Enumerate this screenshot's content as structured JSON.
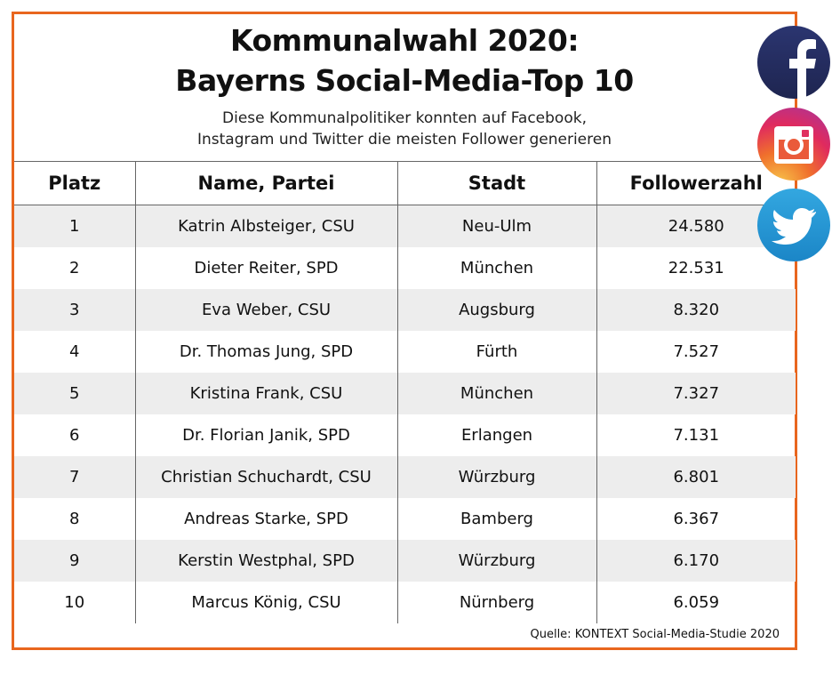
{
  "header": {
    "title_line1": "Kommunalwahl 2020:",
    "title_line2": "Bayerns Social-Media-Top 10",
    "subtitle_line1": "Diese Kommunalpolitiker konnten auf Facebook,",
    "subtitle_line2": "Instagram und Twitter die meisten Follower generieren"
  },
  "table": {
    "columns": [
      "Platz",
      "Name, Partei",
      "Stadt",
      "Followerzahl"
    ],
    "rows": [
      [
        "1",
        "Katrin Albsteiger, CSU",
        "Neu-Ulm",
        "24.580"
      ],
      [
        "2",
        "Dieter Reiter, SPD",
        "München",
        "22.531"
      ],
      [
        "3",
        "Eva Weber, CSU",
        "Augsburg",
        "8.320"
      ],
      [
        "4",
        "Dr. Thomas Jung, SPD",
        "Fürth",
        "7.527"
      ],
      [
        "5",
        "Kristina Frank, CSU",
        "München",
        "7.327"
      ],
      [
        "6",
        "Dr. Florian Janik, SPD",
        "Erlangen",
        "7.131"
      ],
      [
        "7",
        "Christian Schuchardt, CSU",
        "Würzburg",
        "6.801"
      ],
      [
        "8",
        "Andreas Starke, SPD",
        "Bamberg",
        "6.367"
      ],
      [
        "9",
        "Kerstin Westphal, SPD",
        "Würzburg",
        "6.170"
      ],
      [
        "10",
        "Marcus König, CSU",
        "Nürnberg",
        "6.059"
      ]
    ]
  },
  "source": "Quelle: KONTEXT Social-Media-Studie 2020",
  "icons": [
    "facebook-icon",
    "instagram-icon",
    "twitter-icon"
  ],
  "colors": {
    "frame": "#e8661e",
    "row_stripe": "#ededed",
    "facebook": "#232b5e",
    "twitter": "#2497d6"
  }
}
